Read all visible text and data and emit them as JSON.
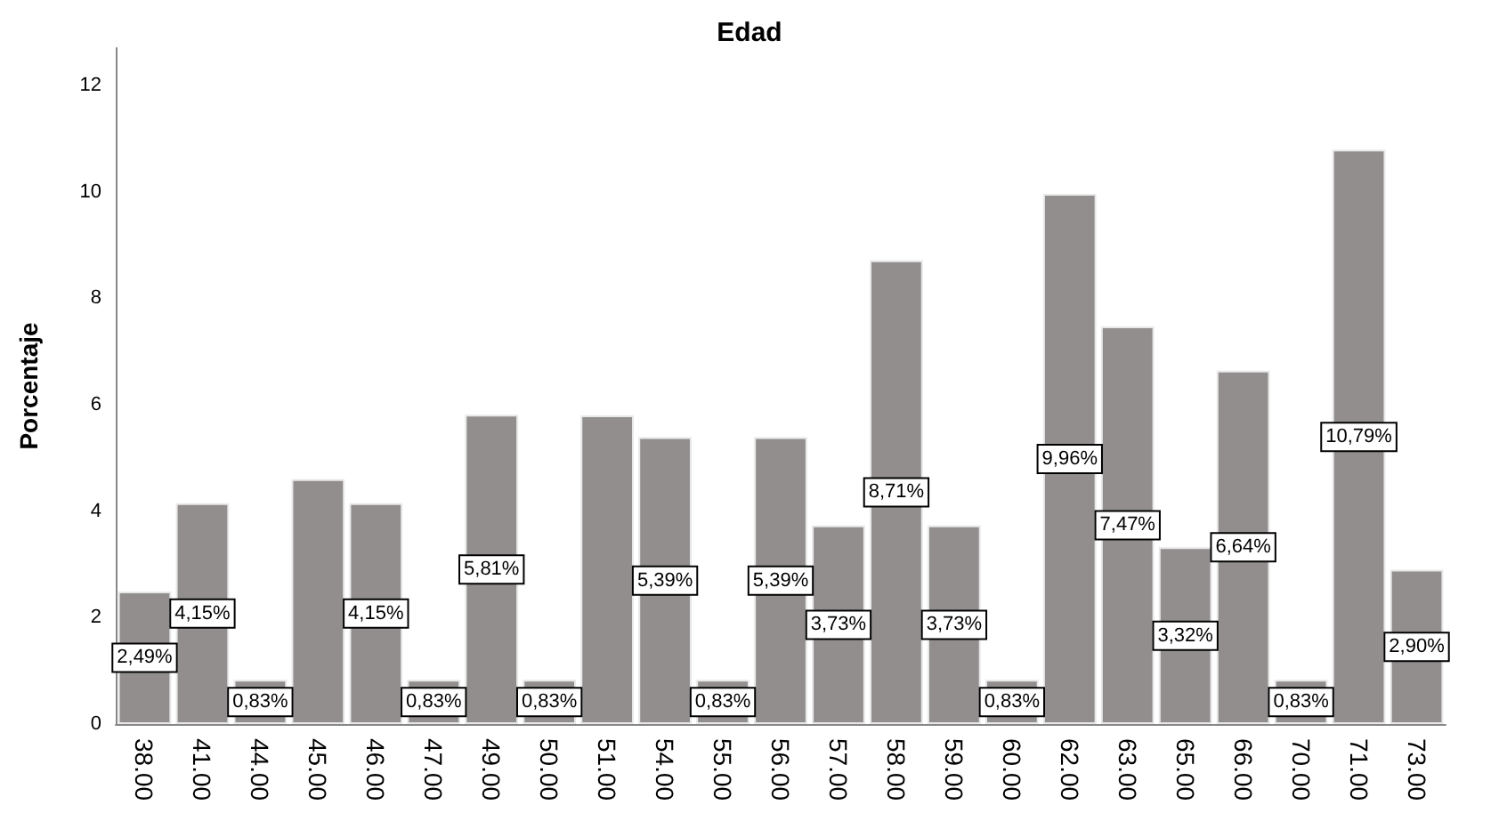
{
  "chart_data": {
    "type": "bar",
    "title": "Edad",
    "ylabel": "Porcentaje",
    "categories": [
      "38.00",
      "41.00",
      "44.00",
      "45.00",
      "46.00",
      "47.00",
      "49.00",
      "50.00",
      "51.00",
      "54.00",
      "55.00",
      "56.00",
      "57.00",
      "58.00",
      "59.00",
      "60.00",
      "62.00",
      "63.00",
      "65.00",
      "66.00",
      "70.00",
      "71.00",
      "73.00"
    ],
    "values": [
      2.49,
      4.15,
      0.83,
      4.6,
      4.15,
      0.83,
      5.81,
      0.83,
      5.8,
      5.39,
      0.83,
      5.39,
      3.73,
      8.71,
      3.73,
      0.83,
      9.96,
      7.47,
      3.32,
      6.64,
      0.83,
      10.79,
      2.9
    ],
    "value_labels": [
      "2,49%",
      "4,15%",
      "0,83%",
      null,
      "4,15%",
      "0,83%",
      "5,81%",
      "0,83%",
      null,
      "5,39%",
      "0,83%",
      "5,39%",
      "3,73%",
      "8,71%",
      "3,73%",
      "0,83%",
      "9,96%",
      "7,47%",
      "3,32%",
      "6,64%",
      "0,83%",
      "10,79%",
      "2,90%"
    ],
    "color": "#928e8e",
    "ylim": [
      0,
      12.7
    ],
    "yticks": [
      0,
      2,
      4,
      6,
      8,
      10,
      12
    ],
    "grid": false
  }
}
